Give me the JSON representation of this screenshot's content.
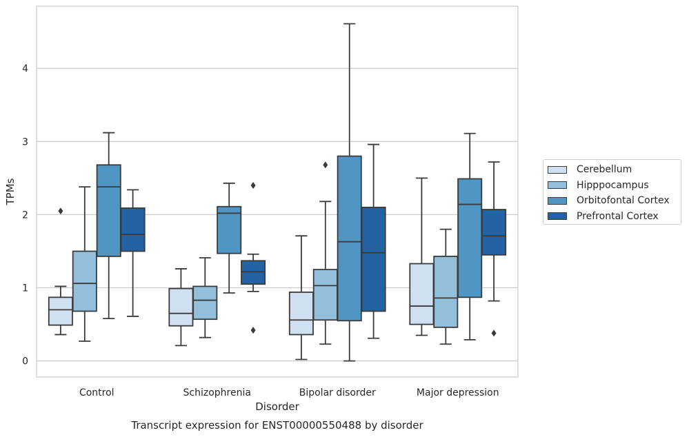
{
  "chart_data": {
    "type": "box",
    "title": "Transcript expression for ENST00000550488 by disorder",
    "xlabel": "Disorder",
    "ylabel": "TPMs",
    "ylim": [
      -0.22,
      4.85
    ],
    "yticks": [
      0,
      1,
      2,
      3,
      4
    ],
    "grid": "horizontal",
    "legend_position": "right",
    "categories": [
      "Control",
      "Schizophrenia",
      "Bipolar disorder",
      "Major depression"
    ],
    "series": [
      {
        "name": "Cerebellum",
        "color": "#d0e0f1",
        "boxes": [
          {
            "whisker_low": 0.36,
            "q1": 0.49,
            "median": 0.7,
            "q3": 0.87,
            "whisker_high": 1.02,
            "outliers": [
              2.05
            ]
          },
          {
            "whisker_low": 0.21,
            "q1": 0.48,
            "median": 0.65,
            "q3": 0.99,
            "whisker_high": 1.26,
            "outliers": []
          },
          {
            "whisker_low": 0.02,
            "q1": 0.36,
            "median": 0.56,
            "q3": 0.94,
            "whisker_high": 1.71,
            "outliers": []
          },
          {
            "whisker_low": 0.35,
            "q1": 0.5,
            "median": 0.75,
            "q3": 1.33,
            "whisker_high": 2.5,
            "outliers": []
          }
        ]
      },
      {
        "name": "Hipppocampus",
        "color": "#94bfdb",
        "boxes": [
          {
            "whisker_low": 0.27,
            "q1": 0.68,
            "median": 1.06,
            "q3": 1.5,
            "whisker_high": 2.38,
            "outliers": []
          },
          {
            "whisker_low": 0.32,
            "q1": 0.57,
            "median": 0.83,
            "q3": 1.02,
            "whisker_high": 1.41,
            "outliers": []
          },
          {
            "whisker_low": 0.23,
            "q1": 0.56,
            "median": 1.03,
            "q3": 1.25,
            "whisker_high": 2.18,
            "outliers": [
              2.68
            ]
          },
          {
            "whisker_low": 0.23,
            "q1": 0.46,
            "median": 0.86,
            "q3": 1.43,
            "whisker_high": 1.8,
            "outliers": []
          }
        ]
      },
      {
        "name": "Orbitofontal Cortex",
        "color": "#5096c5",
        "boxes": [
          {
            "whisker_low": 0.58,
            "q1": 1.43,
            "median": 2.38,
            "q3": 2.68,
            "whisker_high": 3.12,
            "outliers": []
          },
          {
            "whisker_low": 0.93,
            "q1": 1.47,
            "median": 2.02,
            "q3": 2.11,
            "whisker_high": 2.43,
            "outliers": []
          },
          {
            "whisker_low": 0.0,
            "q1": 0.55,
            "median": 1.63,
            "q3": 2.8,
            "whisker_high": 4.61,
            "outliers": []
          },
          {
            "whisker_low": 0.29,
            "q1": 0.87,
            "median": 2.14,
            "q3": 2.49,
            "whisker_high": 3.11,
            "outliers": []
          }
        ]
      },
      {
        "name": "Prefrontal Cortex",
        "color": "#2463a3",
        "boxes": [
          {
            "whisker_low": 0.61,
            "q1": 1.5,
            "median": 1.73,
            "q3": 2.09,
            "whisker_high": 2.34,
            "outliers": []
          },
          {
            "whisker_low": 0.95,
            "q1": 1.05,
            "median": 1.22,
            "q3": 1.37,
            "whisker_high": 1.46,
            "outliers": [
              2.4,
              0.42
            ]
          },
          {
            "whisker_low": 0.31,
            "q1": 0.68,
            "median": 1.48,
            "q3": 2.1,
            "whisker_high": 2.96,
            "outliers": []
          },
          {
            "whisker_low": 0.82,
            "q1": 1.45,
            "median": 1.71,
            "q3": 2.07,
            "whisker_high": 2.72,
            "outliers": [
              0.38
            ]
          }
        ]
      }
    ]
  }
}
